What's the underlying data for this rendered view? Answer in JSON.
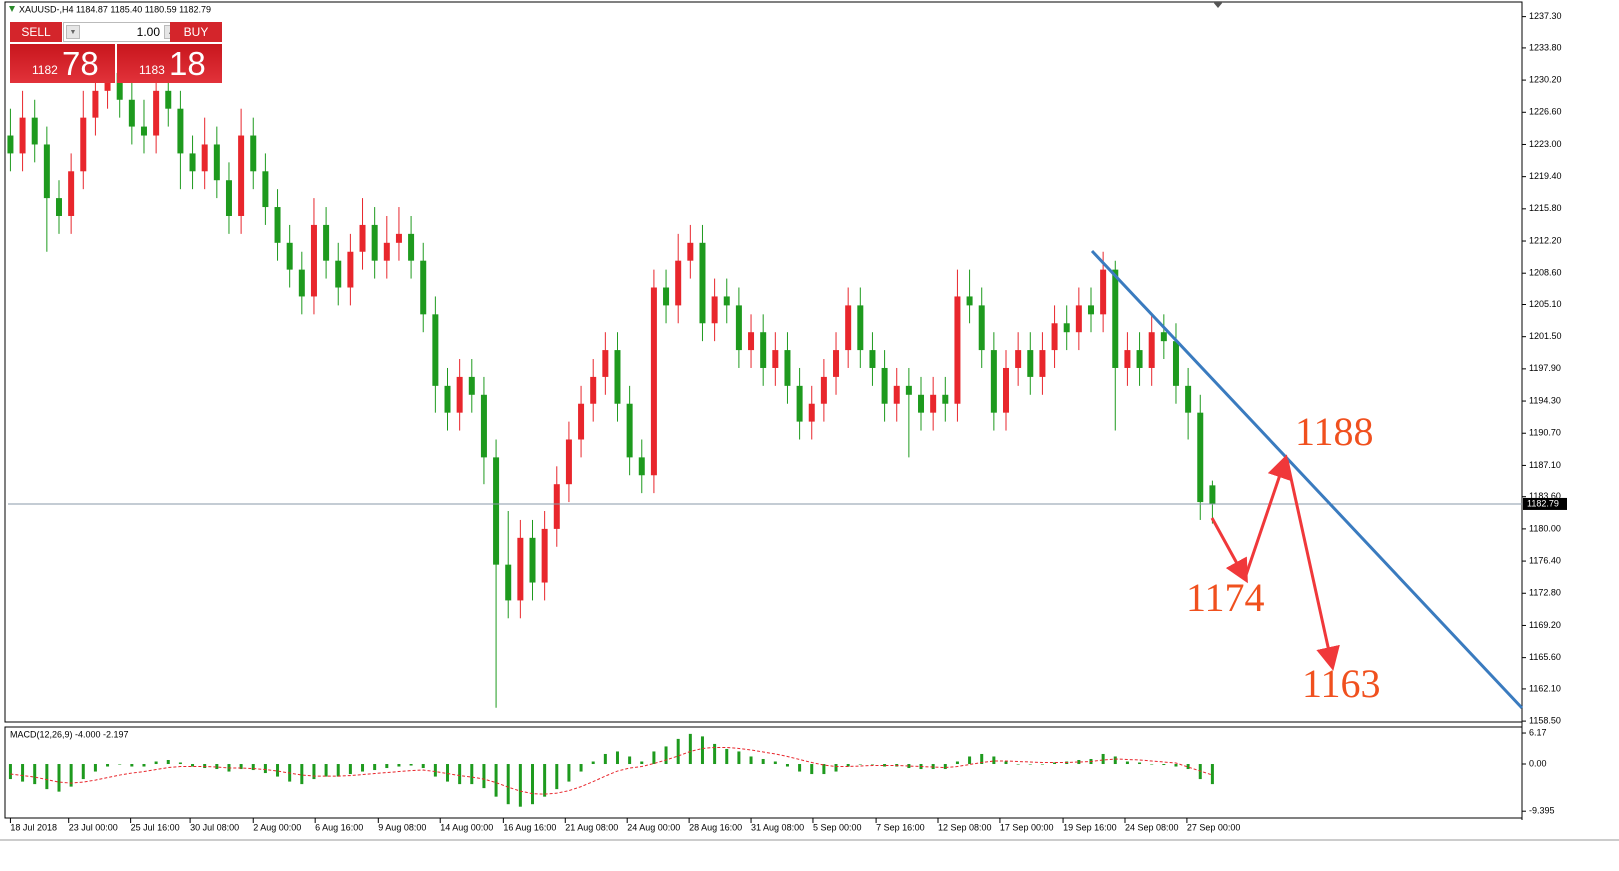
{
  "header": "XAUUSD-,H4  1184.87 1185.40 1180.59 1182.79",
  "trade_panel": {
    "sell": "SELL",
    "buy": "BUY",
    "lots": "1.00",
    "bid_big": "1182",
    "bid_pips": "78",
    "ask_big": "1183",
    "ask_pips": "18"
  },
  "chart_data": [
    {
      "type": "candlestick",
      "up_color": "#e8262c",
      "down_color": "#1e9a1e",
      "open": [
        1224,
        1222,
        1226,
        1223,
        1217,
        1215,
        1220,
        1226,
        1229,
        1231,
        1228,
        1225,
        1224,
        1229,
        1227,
        1222,
        1220,
        1223,
        1219,
        1215,
        1224,
        1220,
        1216,
        1212,
        1209,
        1206,
        1214,
        1210,
        1207,
        1211,
        1214,
        1210,
        1212,
        1213,
        1210,
        1204,
        1196,
        1193,
        1197,
        1195,
        1188,
        1176,
        1172,
        1179,
        1174,
        1180,
        1185,
        1190,
        1194,
        1197,
        1200,
        1194,
        1188,
        1186,
        1207,
        1205,
        1210,
        1212,
        1203,
        1206,
        1205,
        1200,
        1202,
        1198,
        1200,
        1196,
        1192,
        1194,
        1197,
        1200,
        1205,
        1200,
        1198,
        1194,
        1196,
        1195,
        1193,
        1195,
        1194,
        1206,
        1205,
        1200,
        1193,
        1198,
        1200,
        1197,
        1200,
        1203,
        1202,
        1205,
        1204,
        1209,
        1198,
        1200,
        1198,
        1202,
        1201,
        1196,
        1193,
        1184.87
      ],
      "high": [
        1227,
        1229,
        1228,
        1225,
        1219,
        1222,
        1229,
        1232,
        1233,
        1233,
        1230,
        1228,
        1231,
        1231,
        1229,
        1224,
        1226,
        1225,
        1221,
        1227,
        1226,
        1222,
        1218,
        1214,
        1211,
        1217,
        1216,
        1212,
        1213,
        1217,
        1216,
        1215,
        1216,
        1215,
        1212,
        1206,
        1198,
        1199,
        1199,
        1197,
        1190,
        1182,
        1181,
        1181,
        1182,
        1187,
        1192,
        1196,
        1199,
        1202,
        1202,
        1196,
        1190,
        1209,
        1209,
        1213,
        1214,
        1214,
        1208,
        1208,
        1207,
        1204,
        1204,
        1202,
        1202,
        1198,
        1196,
        1199,
        1202,
        1207,
        1207,
        1202,
        1200,
        1198,
        1198,
        1197,
        1197,
        1197,
        1209,
        1209,
        1207,
        1202,
        1200,
        1202,
        1202,
        1202,
        1205,
        1205,
        1207,
        1207,
        1211,
        1210,
        1202,
        1202,
        1204,
        1204,
        1203,
        1198,
        1195,
        1185.4
      ],
      "low": [
        1220,
        1220,
        1221,
        1211,
        1213,
        1213,
        1218,
        1224,
        1227,
        1226,
        1223,
        1222,
        1222,
        1225,
        1218,
        1218,
        1218,
        1217,
        1213,
        1213,
        1218,
        1214,
        1210,
        1207,
        1204,
        1204,
        1208,
        1205,
        1205,
        1209,
        1208,
        1208,
        1210,
        1208,
        1202,
        1193,
        1191,
        1191,
        1193,
        1185,
        1160,
        1170,
        1170,
        1172,
        1172,
        1178,
        1183,
        1188,
        1192,
        1195,
        1192,
        1186,
        1184,
        1184,
        1203,
        1203,
        1208,
        1201,
        1201,
        1203,
        1198,
        1198,
        1196,
        1196,
        1194,
        1190,
        1190,
        1192,
        1195,
        1198,
        1198,
        1196,
        1192,
        1192,
        1188,
        1191,
        1191,
        1192,
        1192,
        1203,
        1198,
        1191,
        1191,
        1196,
        1195,
        1195,
        1198,
        1200,
        1200,
        1202,
        1202,
        1191,
        1196,
        1196,
        1196,
        1199,
        1194,
        1190,
        1181,
        1180.59
      ],
      "close": [
        1222,
        1226,
        1223,
        1217,
        1215,
        1220,
        1226,
        1229,
        1231,
        1228,
        1225,
        1224,
        1229,
        1227,
        1222,
        1220,
        1223,
        1219,
        1215,
        1224,
        1220,
        1216,
        1212,
        1209,
        1206,
        1214,
        1210,
        1207,
        1211,
        1214,
        1210,
        1212,
        1213,
        1210,
        1204,
        1196,
        1193,
        1197,
        1195,
        1188,
        1176,
        1172,
        1179,
        1174,
        1180,
        1185,
        1190,
        1194,
        1197,
        1200,
        1194,
        1188,
        1186,
        1207,
        1205,
        1210,
        1212,
        1203,
        1206,
        1205,
        1200,
        1202,
        1198,
        1200,
        1196,
        1192,
        1194,
        1197,
        1200,
        1205,
        1200,
        1198,
        1194,
        1196,
        1195,
        1193,
        1195,
        1194,
        1206,
        1205,
        1200,
        1193,
        1198,
        1200,
        1197,
        1200,
        1203,
        1202,
        1205,
        1204,
        1209,
        1198,
        1200,
        1198,
        1202,
        1201,
        1196,
        1193,
        1183,
        1182.79
      ],
      "ylim": [
        1158.4,
        1238.6
      ],
      "yticks": [
        {
          "value": 1237.3,
          "label": "1237.30"
        },
        {
          "value": 1233.8,
          "label": "1233.80"
        },
        {
          "value": 1230.2,
          "label": "1230.20"
        },
        {
          "value": 1226.6,
          "label": "1226.60"
        },
        {
          "value": 1223.0,
          "label": "1223.00"
        },
        {
          "value": 1219.4,
          "label": "1219.40"
        },
        {
          "value": 1215.8,
          "label": "1215.80"
        },
        {
          "value": 1212.2,
          "label": "1212.20"
        },
        {
          "value": 1208.6,
          "label": "1208.60"
        },
        {
          "value": 1205.1,
          "label": "1205.10"
        },
        {
          "value": 1201.5,
          "label": "1201.50"
        },
        {
          "value": 1197.9,
          "label": "1197.90"
        },
        {
          "value": 1194.3,
          "label": "1194.30"
        },
        {
          "value": 1190.7,
          "label": "1190.70"
        },
        {
          "value": 1187.1,
          "label": "1187.10"
        },
        {
          "value": 1183.6,
          "label": "1183.60"
        },
        {
          "value": 1180.0,
          "label": "1180.00"
        },
        {
          "value": 1176.4,
          "label": "1176.40"
        },
        {
          "value": 1172.8,
          "label": "1172.80"
        },
        {
          "value": 1169.2,
          "label": "1169.20"
        },
        {
          "value": 1165.6,
          "label": "1165.60"
        },
        {
          "value": 1162.1,
          "label": "1162.10"
        },
        {
          "value": 1158.5,
          "label": "1158.50"
        }
      ],
      "xlim": [
        -0.2,
        124.5
      ],
      "xticks": [
        {
          "value": 0,
          "label": "18 Jul 2018"
        },
        {
          "value": 4.8,
          "label": "23 Jul 00:00"
        },
        {
          "value": 9.9,
          "label": "25 Jul 16:00"
        },
        {
          "value": 14.8,
          "label": "30 Jul 08:00"
        },
        {
          "value": 20,
          "label": "2 Aug 00:00"
        },
        {
          "value": 25.1,
          "label": "6 Aug 16:00"
        },
        {
          "value": 30.3,
          "label": "9 Aug 08:00"
        },
        {
          "value": 35.4,
          "label": "14 Aug 00:00"
        },
        {
          "value": 40.6,
          "label": "16 Aug 16:00"
        },
        {
          "value": 45.7,
          "label": "21 Aug 08:00"
        },
        {
          "value": 50.8,
          "label": "24 Aug 00:00"
        },
        {
          "value": 55.9,
          "label": "28 Aug 16:00"
        },
        {
          "value": 61,
          "label": "31 Aug 08:00"
        },
        {
          "value": 66.1,
          "label": "5 Sep 00:00"
        },
        {
          "value": 71.3,
          "label": "7 Sep 16:00"
        },
        {
          "value": 76.4,
          "label": "12 Sep 08:00"
        },
        {
          "value": 81.5,
          "label": "17 Sep 00:00"
        },
        {
          "value": 86.7,
          "label": "19 Sep 16:00"
        },
        {
          "value": 91.8,
          "label": "24 Sep 08:00"
        },
        {
          "value": 96.9,
          "label": "27 Sep 00:00"
        }
      ],
      "grid": false,
      "current_price": 1182.79,
      "current_price_color": "#8a9aa8",
      "annotations": [
        "1188",
        "1174",
        "1163"
      ]
    },
    {
      "type": "macd",
      "title": "MACD(12,26,9) -4.000 -2.197",
      "color": "#1e9a1e",
      "signal_color": "#e8262c",
      "values": [
        -3,
        -3.5,
        -4,
        -5,
        -5.5,
        -4.5,
        -3,
        -1.5,
        -0.5,
        0,
        -0.5,
        -0.5,
        0.5,
        0.8,
        0.3,
        -0.5,
        -0.8,
        -1,
        -1.5,
        -1,
        -1.2,
        -1.8,
        -2.5,
        -3.5,
        -4,
        -3,
        -2.5,
        -2.5,
        -2,
        -1.5,
        -1.2,
        -0.8,
        -0.5,
        -0.3,
        -0.8,
        -2.5,
        -3.5,
        -4,
        -4,
        -4.8,
        -6.5,
        -8,
        -8.5,
        -8,
        -6.5,
        -5,
        -3.5,
        -1.5,
        0.5,
        2,
        2.5,
        1.5,
        0.5,
        2.5,
        3.5,
        5,
        6,
        5.5,
        4,
        3,
        2.5,
        1.5,
        1,
        0.5,
        -0.5,
        -1.5,
        -2,
        -2,
        -1.5,
        -0.5,
        0,
        0,
        -0.5,
        -0.5,
        -0.8,
        -1,
        -1,
        -1,
        0.5,
        1.5,
        2,
        1.5,
        0.5,
        0,
        0,
        0,
        0.3,
        0.5,
        0.8,
        1,
        2,
        1.5,
        0.5,
        0.3,
        0,
        -0.2,
        -0.5,
        -1,
        -3,
        -4.0
      ],
      "signal": [
        -2,
        -2.3,
        -2.6,
        -3.1,
        -3.6,
        -3.8,
        -3.6,
        -3.2,
        -2.7,
        -2.2,
        -1.8,
        -1.5,
        -1.1,
        -0.7,
        -0.5,
        -0.5,
        -0.5,
        -0.6,
        -0.8,
        -0.8,
        -0.9,
        -1.1,
        -1.4,
        -1.8,
        -2.2,
        -2.4,
        -2.4,
        -2.4,
        -2.3,
        -2.1,
        -1.9,
        -1.7,
        -1.5,
        -1.3,
        -1.2,
        -1.5,
        -1.9,
        -2.3,
        -2.6,
        -3,
        -3.7,
        -4.6,
        -5.4,
        -5.9,
        -6,
        -5.8,
        -5.3,
        -4.5,
        -3.5,
        -2.4,
        -1.4,
        -0.8,
        -0.5,
        0.1,
        0.8,
        1.6,
        2.5,
        3.1,
        3.3,
        3.3,
        3.1,
        2.8,
        2.4,
        2,
        1.5,
        0.9,
        0.3,
        -0.2,
        -0.5,
        -0.5,
        -0.4,
        -0.3,
        -0.3,
        -0.3,
        -0.4,
        -0.5,
        -0.6,
        -0.7,
        -0.5,
        -0.1,
        0.3,
        0.6,
        0.6,
        0.5,
        0.4,
        0.3,
        0.3,
        0.3,
        0.4,
        0.5,
        0.8,
        1,
        0.9,
        0.8,
        0.6,
        0.4,
        0.2,
        -0.6,
        -1.4,
        -2.197
      ],
      "ylim": [
        -10.75,
        7.37
      ],
      "yticks": [
        6.17,
        {
          "value": 0,
          "label": "0.00"
        },
        -9.395
      ]
    }
  ]
}
